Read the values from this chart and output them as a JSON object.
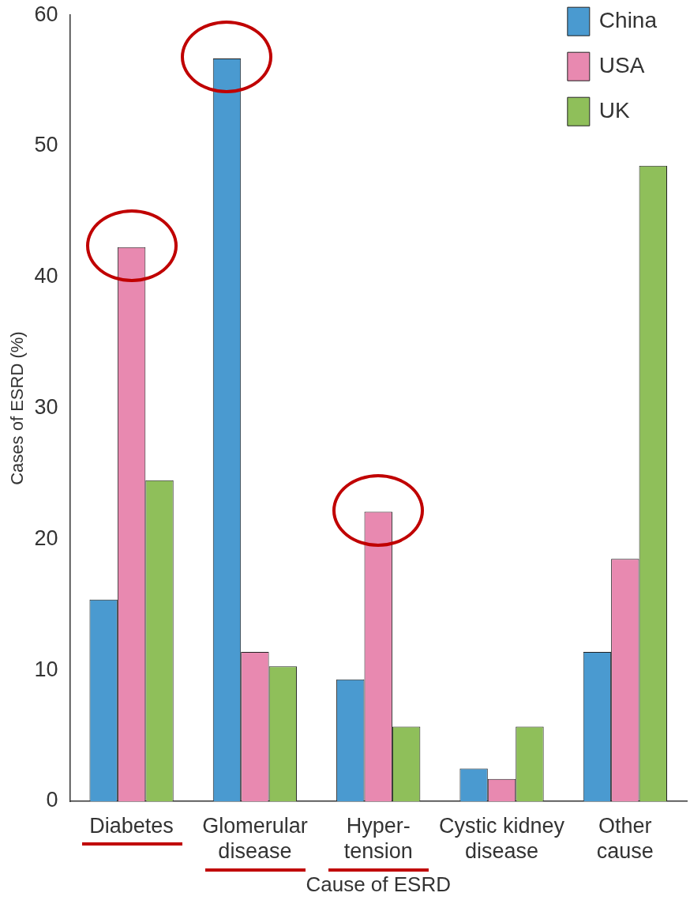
{
  "chart_data": {
    "type": "bar",
    "xlabel": "Cause of ESRD",
    "ylabel": "Cases of ESRD (%)",
    "categories": [
      "Diabetes",
      "Glomerular\ndisease",
      "Hyper-\ntension",
      "Cystic kidney\ndisease",
      "Other\ncause"
    ],
    "series": [
      {
        "name": "China",
        "color": "#4a9ad0",
        "values": [
          15.4,
          56.7,
          9.3,
          2.5,
          11.4
        ]
      },
      {
        "name": "USA",
        "color": "#e889b0",
        "values": [
          42.3,
          11.4,
          22.1,
          1.7,
          18.5
        ]
      },
      {
        "name": "UK",
        "color": "#8fbf5a",
        "values": [
          24.5,
          10.3,
          5.7,
          5.7,
          48.5
        ]
      }
    ],
    "ylim": [
      0,
      60
    ],
    "yticks": [
      0,
      10,
      20,
      30,
      40,
      50,
      60
    ],
    "grid": false,
    "legend": "top right"
  }
}
